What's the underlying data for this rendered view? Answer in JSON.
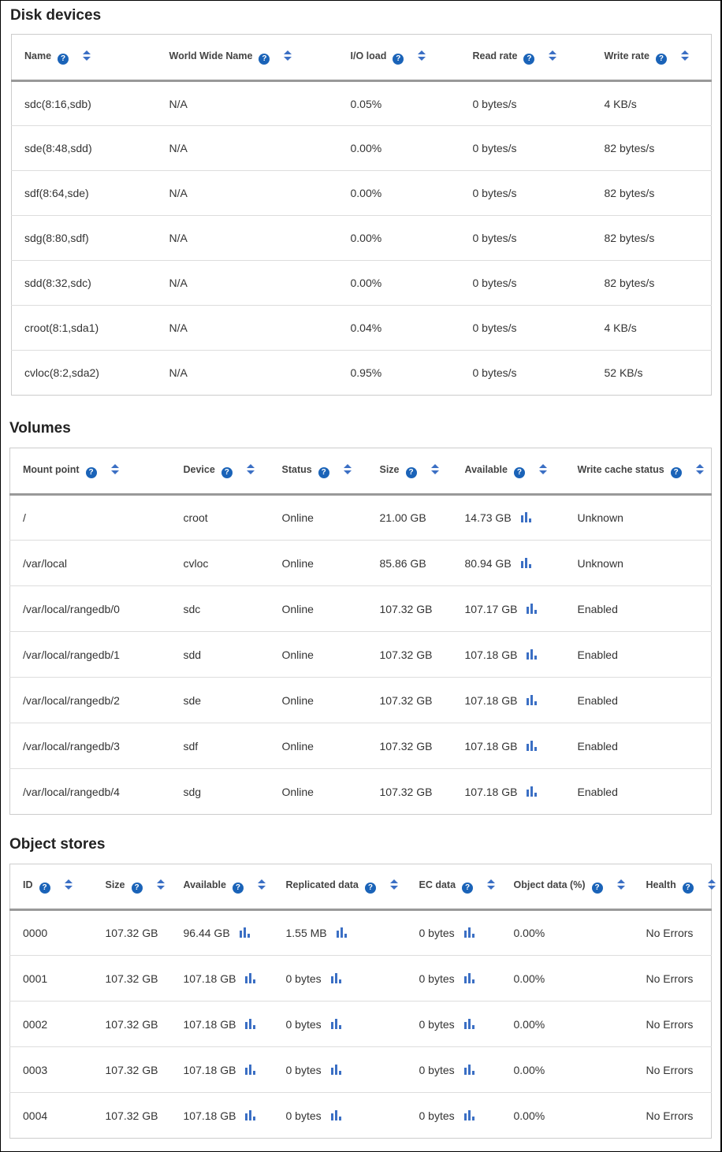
{
  "disk": {
    "title": "Disk devices",
    "headers": [
      "Name",
      "World Wide Name",
      "I/O load",
      "Read rate",
      "Write rate"
    ],
    "chart_cols": [],
    "rows": [
      [
        "sdc(8:16,sdb)",
        "N/A",
        "0.05%",
        "0 bytes/s",
        "4 KB/s"
      ],
      [
        "sde(8:48,sdd)",
        "N/A",
        "0.00%",
        "0 bytes/s",
        "82 bytes/s"
      ],
      [
        "sdf(8:64,sde)",
        "N/A",
        "0.00%",
        "0 bytes/s",
        "82 bytes/s"
      ],
      [
        "sdg(8:80,sdf)",
        "N/A",
        "0.00%",
        "0 bytes/s",
        "82 bytes/s"
      ],
      [
        "sdd(8:32,sdc)",
        "N/A",
        "0.00%",
        "0 bytes/s",
        "82 bytes/s"
      ],
      [
        "croot(8:1,sda1)",
        "N/A",
        "0.04%",
        "0 bytes/s",
        "4 KB/s"
      ],
      [
        "cvloc(8:2,sda2)",
        "N/A",
        "0.95%",
        "0 bytes/s",
        "52 KB/s"
      ]
    ]
  },
  "volumes": {
    "title": "Volumes",
    "headers": [
      "Mount point",
      "Device",
      "Status",
      "Size",
      "Available",
      "Write cache status"
    ],
    "chart_cols": [
      4
    ],
    "rows": [
      [
        "/",
        "croot",
        "Online",
        "21.00 GB",
        "14.73 GB",
        "Unknown"
      ],
      [
        "/var/local",
        "cvloc",
        "Online",
        "85.86 GB",
        "80.94 GB",
        "Unknown"
      ],
      [
        "/var/local/rangedb/0",
        "sdc",
        "Online",
        "107.32 GB",
        "107.17 GB",
        "Enabled"
      ],
      [
        "/var/local/rangedb/1",
        "sdd",
        "Online",
        "107.32 GB",
        "107.18 GB",
        "Enabled"
      ],
      [
        "/var/local/rangedb/2",
        "sde",
        "Online",
        "107.32 GB",
        "107.18 GB",
        "Enabled"
      ],
      [
        "/var/local/rangedb/3",
        "sdf",
        "Online",
        "107.32 GB",
        "107.18 GB",
        "Enabled"
      ],
      [
        "/var/local/rangedb/4",
        "sdg",
        "Online",
        "107.32 GB",
        "107.18 GB",
        "Enabled"
      ]
    ]
  },
  "objects": {
    "title": "Object stores",
    "headers": [
      "ID",
      "Size",
      "Available",
      "Replicated data",
      "EC data",
      "Object data (%)",
      "Health"
    ],
    "chart_cols": [
      2,
      3,
      4
    ],
    "rows": [
      [
        "0000",
        "107.32 GB",
        "96.44 GB",
        "1.55 MB",
        "0 bytes",
        "0.00%",
        "No Errors"
      ],
      [
        "0001",
        "107.32 GB",
        "107.18 GB",
        "0 bytes",
        "0 bytes",
        "0.00%",
        "No Errors"
      ],
      [
        "0002",
        "107.32 GB",
        "107.18 GB",
        "0 bytes",
        "0 bytes",
        "0.00%",
        "No Errors"
      ],
      [
        "0003",
        "107.32 GB",
        "107.18 GB",
        "0 bytes",
        "0 bytes",
        "0.00%",
        "No Errors"
      ],
      [
        "0004",
        "107.32 GB",
        "107.18 GB",
        "0 bytes",
        "0 bytes",
        "0.00%",
        "No Errors"
      ]
    ]
  },
  "icons": {
    "help": "question-circle-icon",
    "sort": "sort-icon",
    "chart": "bar-chart-icon"
  },
  "accent": "#1a63b8"
}
